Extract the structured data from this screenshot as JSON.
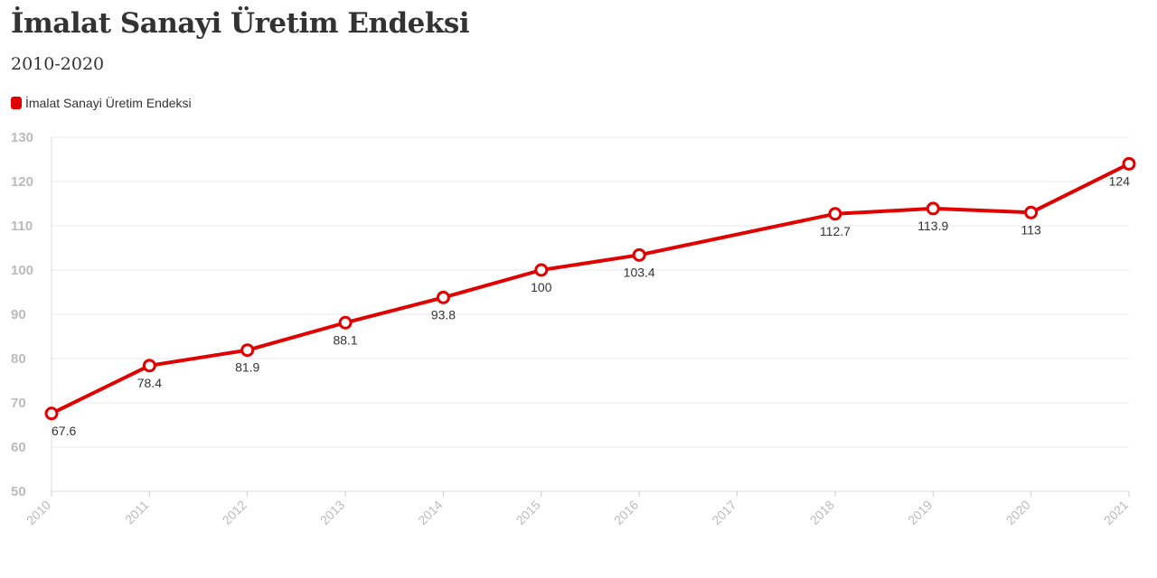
{
  "header": {
    "title": "İmalat Sanayi Üretim Endeksi",
    "subtitle": "2010-2020"
  },
  "chart_data": {
    "type": "line",
    "title": "İmalat Sanayi Üretim Endeksi",
    "subtitle": "2010-2020",
    "categories": [
      "2010",
      "2011",
      "2012",
      "2013",
      "2014",
      "2015",
      "2016",
      "2017",
      "2018",
      "2019",
      "2020",
      "2021"
    ],
    "series": [
      {
        "name": "İmalat Sanayi Üretim Endeksi",
        "color": "#e00000",
        "values": [
          67.6,
          78.4,
          81.9,
          88.1,
          93.8,
          100,
          103.4,
          null,
          112.7,
          113.9,
          113,
          124
        ],
        "labels": [
          "67.6",
          "78.4",
          "81.9",
          "88.1",
          "93.8",
          "100",
          "103.4",
          null,
          "112.7",
          "113.9",
          "113",
          "124"
        ]
      }
    ],
    "ylim": [
      50,
      130
    ],
    "yticks": [
      50,
      60,
      70,
      80,
      90,
      100,
      110,
      120,
      130
    ],
    "xlabel": "",
    "ylabel": "",
    "grid": true,
    "legend": "top-left"
  }
}
